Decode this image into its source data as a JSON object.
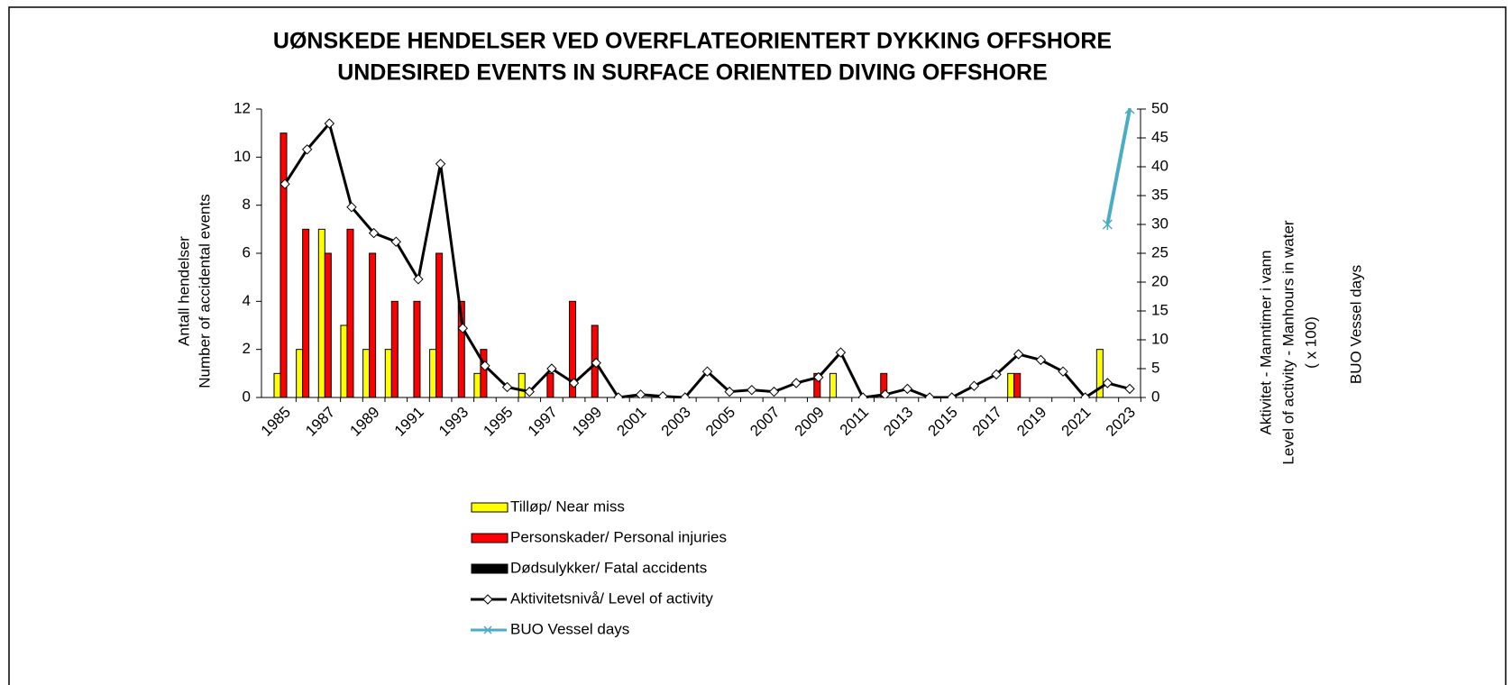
{
  "chart_data": {
    "type": "bar",
    "title": "UØNSKEDE HENDELSER  VED OVERFLATEORIENTERT DYKKING OFFSHORE",
    "subtitle": "UNDESIRED EVENTS IN SURFACE ORIENTED DIVING OFFSHORE",
    "y_label": [
      "Antall hendelser",
      "Number of accidental events"
    ],
    "y2_label": [
      "Aktivitet - Manntimer i vann",
      "Level of activity - Manhours in water",
      "( x 100)"
    ],
    "y3_label": "BUO Vessel days",
    "categories": [
      "1985",
      null,
      "1987",
      null,
      "1989",
      null,
      "1991",
      null,
      "1993",
      null,
      "1995",
      null,
      "1997",
      null,
      "1999",
      null,
      "2001",
      null,
      "2003",
      null,
      "2005",
      null,
      "2007",
      null,
      "2009",
      null,
      "2011",
      null,
      "2013",
      null,
      "2015",
      null,
      "2017",
      null,
      "2019",
      null,
      "2021",
      null,
      "2023"
    ],
    "ylim": [
      0,
      12
    ],
    "yticks": [
      0,
      2,
      4,
      6,
      8,
      10,
      12
    ],
    "y2lim": [
      0,
      50
    ],
    "y2ticks": [
      0,
      5,
      10,
      15,
      20,
      25,
      30,
      35,
      40,
      45,
      50
    ],
    "series": [
      {
        "name": "Tilløp/ Near miss",
        "color": "#ffff00",
        "values": [
          1,
          2,
          7,
          3,
          2,
          2,
          0,
          2,
          0,
          1,
          0,
          1,
          0,
          0,
          0,
          0,
          0,
          0,
          0,
          0,
          0,
          0,
          0,
          0,
          0,
          1,
          0,
          0,
          0,
          0,
          0,
          0,
          0,
          1,
          0,
          0,
          0,
          2,
          0
        ]
      },
      {
        "name": "Personskader/ Personal injuries",
        "color": "#ff0000",
        "values": [
          11,
          7,
          6,
          7,
          6,
          4,
          4,
          6,
          4,
          2,
          0,
          0,
          1,
          4,
          3,
          0,
          0,
          0,
          0,
          0,
          0,
          0,
          0,
          0,
          1,
          0,
          0,
          1,
          0,
          0,
          0,
          0,
          0,
          1,
          0,
          0,
          0,
          0,
          0
        ]
      },
      {
        "name": "Dødsulykker/ Fatal accidents",
        "color": "#000000",
        "values": [
          0,
          0,
          0,
          0,
          0,
          0,
          0,
          0,
          0,
          0,
          0,
          0,
          0,
          0,
          0,
          0,
          0,
          0,
          0,
          0,
          0,
          0,
          0,
          0,
          0,
          0,
          0,
          0,
          0,
          0,
          0,
          0,
          0,
          0,
          0,
          0,
          0,
          0,
          0
        ]
      },
      {
        "name": "Aktivitetsnivå/ Level of activity",
        "color": "#000000",
        "type": "line",
        "axis": "y2",
        "values": [
          37,
          43,
          47.5,
          33,
          28.5,
          27,
          20.5,
          40.5,
          12,
          5.5,
          1.8,
          1,
          5,
          2.5,
          6,
          0,
          0.5,
          0.2,
          0,
          4.5,
          1,
          1.3,
          1,
          2.5,
          3.5,
          7.8,
          0,
          0.5,
          1.5,
          0,
          0,
          2,
          4,
          7.5,
          6.5,
          4.5,
          0,
          2.5,
          1.5
        ]
      },
      {
        "name": "BUO Vessel days",
        "color": "#4bacc6",
        "type": "line",
        "axis": "y2",
        "values": [
          null,
          null,
          null,
          null,
          null,
          null,
          null,
          null,
          null,
          null,
          null,
          null,
          null,
          null,
          null,
          null,
          null,
          null,
          null,
          null,
          null,
          null,
          null,
          null,
          null,
          null,
          null,
          null,
          null,
          null,
          null,
          null,
          null,
          null,
          null,
          null,
          null,
          30,
          50
        ]
      }
    ]
  }
}
